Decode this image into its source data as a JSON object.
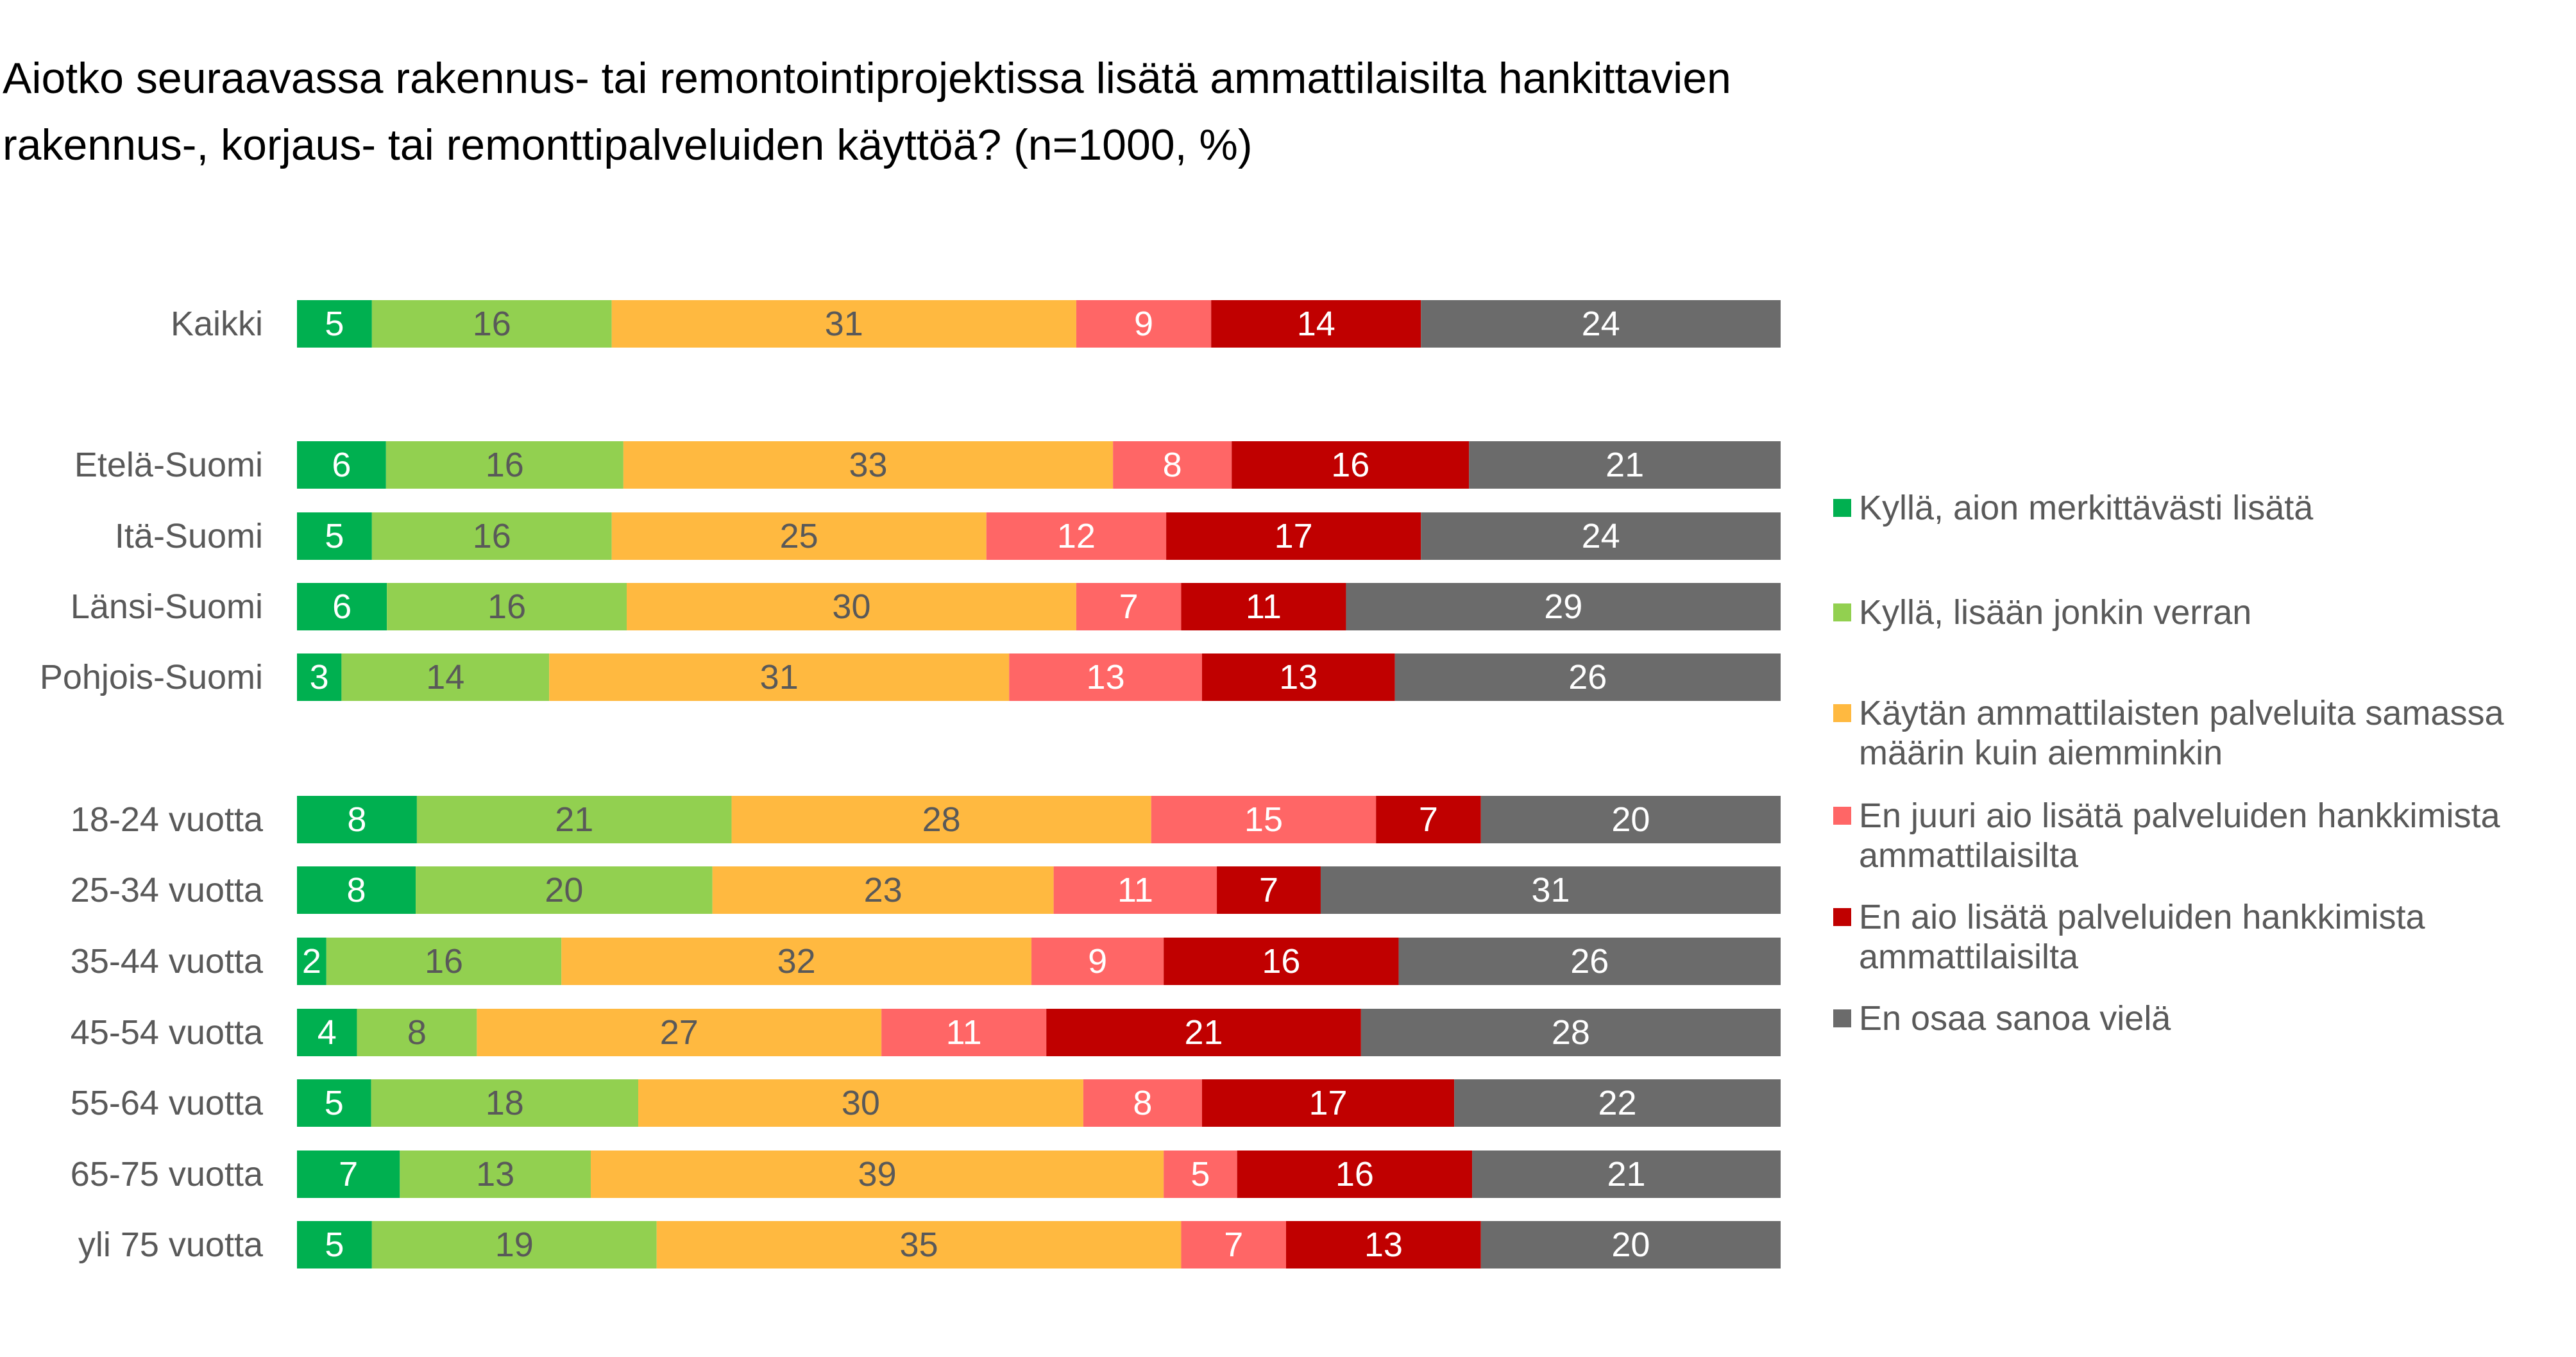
{
  "chart_data": {
    "type": "bar",
    "orientation": "horizontal",
    "stacked": "100%",
    "title": "Aiotko seuraavassa rakennus- tai remontointiprojektissa lisätä ammattilaisilta hankittavien rakennus-, korjaus- tai remonttipalveluiden käyttöä? (n=1000, %)",
    "title_lines": [
      "Aiotko seuraavassa rakennus- tai remontointiprojektissa lisätä ammattilaisilta hankittavien",
      "rakennus-, korjaus- tai remonttipalveluiden käyttöä? (n=1000, %)"
    ],
    "categories": [
      "Kaikki",
      "Etelä-Suomi",
      "Itä-Suomi",
      "Länsi-Suomi",
      "Pohjois-Suomi",
      "18-24 vuotta",
      "25-34 vuotta",
      "35-44 vuotta",
      "45-54 vuotta",
      "55-64 vuotta",
      "65-75 vuotta",
      "yli 75 vuotta"
    ],
    "series": [
      {
        "name": "Kyllä, aion merkittävästi lisätä",
        "color": "#00B050",
        "label_color": "#ffffff",
        "values": [
          5,
          6,
          5,
          6,
          3,
          8,
          8,
          2,
          4,
          5,
          7,
          5
        ]
      },
      {
        "name": "Kyllä, lisään jonkin verran",
        "color": "#92D050",
        "label_color": "#595959",
        "values": [
          16,
          16,
          16,
          16,
          14,
          21,
          20,
          16,
          8,
          18,
          13,
          19
        ]
      },
      {
        "name": "Käytän ammattilaisten palveluita samassa määrin kuin aiemminkin",
        "color": "#FFB940",
        "label_color": "#595959",
        "values": [
          31,
          33,
          25,
          30,
          31,
          28,
          23,
          32,
          27,
          30,
          39,
          35
        ]
      },
      {
        "name": "En juuri aio lisätä palveluiden hankkimista ammattilaisilta",
        "color": "#FF6666",
        "label_color": "#ffffff",
        "values": [
          9,
          8,
          12,
          7,
          13,
          15,
          11,
          9,
          11,
          8,
          5,
          7
        ]
      },
      {
        "name": "En aio lisätä palveluiden hankkimista ammattilaisilta",
        "color": "#C00000",
        "label_color": "#ffffff",
        "values": [
          14,
          16,
          17,
          11,
          13,
          7,
          7,
          16,
          21,
          17,
          16,
          13
        ]
      },
      {
        "name": "En osaa sanoa vielä",
        "color": "#6B6B6B",
        "label_color": "#ffffff",
        "values": [
          24,
          21,
          24,
          29,
          26,
          20,
          31,
          26,
          28,
          22,
          21,
          20
        ]
      }
    ],
    "legend": {
      "position": "right",
      "items": [
        {
          "lines": [
            "Kyllä, aion merkittävästi lisätä"
          ]
        },
        {
          "lines": [
            "Kyllä, lisään jonkin verran"
          ]
        },
        {
          "lines": [
            "Käytän ammattilaisten palveluita samassa",
            "määrin kuin aiemminkin"
          ]
        },
        {
          "lines": [
            "En juuri aio lisätä palveluiden hankkimista",
            "ammattilaisilta"
          ]
        },
        {
          "lines": [
            "En aio lisätä palveluiden hankkimista",
            "ammattilaisilta"
          ]
        },
        {
          "lines": [
            "En osaa sanoa vielä"
          ]
        }
      ]
    },
    "grid": false,
    "data_labels": true
  }
}
